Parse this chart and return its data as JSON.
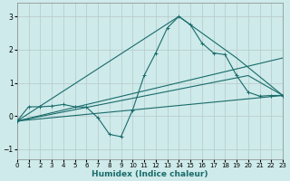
{
  "xlabel": "Humidex (Indice chaleur)",
  "xlim": [
    0,
    23
  ],
  "ylim": [
    -1.3,
    3.4
  ],
  "xtick_labels": [
    "0",
    "1",
    "2",
    "3",
    "4",
    "5",
    "6",
    "7",
    "8",
    "9",
    "10",
    "11",
    "12",
    "13",
    "14",
    "15",
    "16",
    "17",
    "18",
    "19",
    "20",
    "21",
    "22",
    "23"
  ],
  "yticks": [
    -1,
    0,
    1,
    2,
    3
  ],
  "background_color": "#ceeaea",
  "grid_color": "#b8c8c8",
  "line_color": "#1a6b6b",
  "line1": {
    "x": [
      0,
      1,
      2,
      3,
      4,
      5,
      6,
      7,
      8,
      9,
      10,
      11,
      12,
      13,
      14,
      15,
      16,
      17,
      18,
      19,
      20,
      21,
      22,
      23
    ],
    "y": [
      -0.15,
      0.28,
      0.28,
      0.3,
      0.35,
      0.28,
      0.27,
      -0.05,
      -0.55,
      -0.62,
      0.18,
      1.22,
      1.9,
      2.65,
      3.0,
      2.75,
      2.2,
      1.9,
      1.85,
      1.22,
      0.72,
      0.6,
      0.62,
      0.62
    ]
  },
  "line2": {
    "x": [
      0,
      14,
      19,
      23
    ],
    "y": [
      -0.15,
      3.0,
      1.75,
      0.62
    ]
  },
  "line3": {
    "x": [
      0,
      23
    ],
    "y": [
      -0.15,
      0.62
    ]
  },
  "line4": {
    "x": [
      0,
      20,
      23
    ],
    "y": [
      -0.15,
      1.22,
      0.62
    ]
  },
  "line5": {
    "x": [
      0,
      23
    ],
    "y": [
      -0.15,
      1.75
    ]
  }
}
